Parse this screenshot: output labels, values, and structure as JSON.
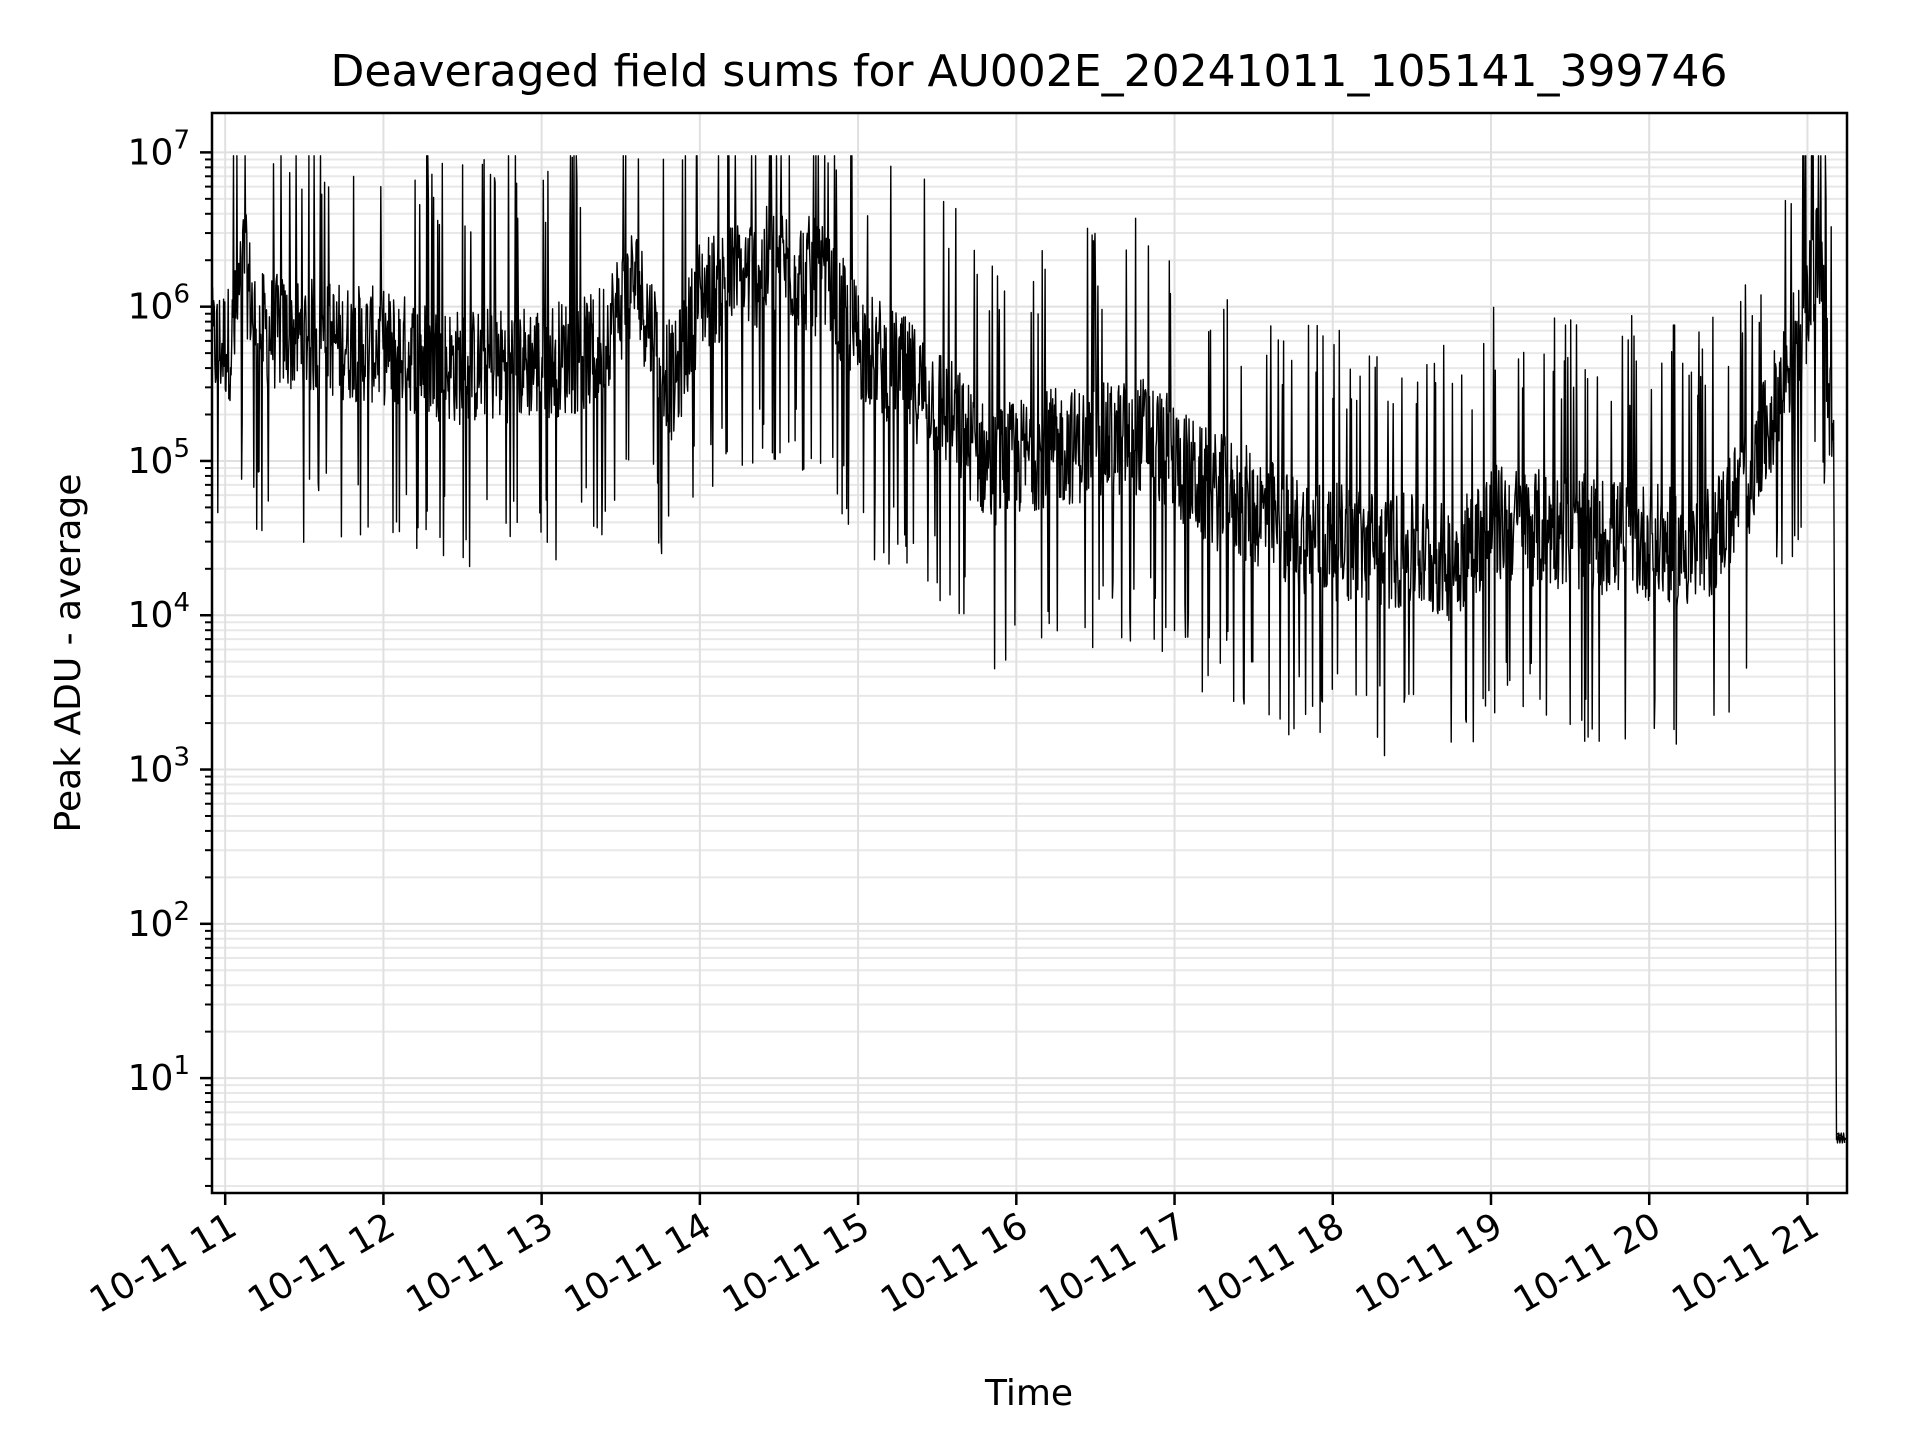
{
  "chart_data": {
    "type": "line",
    "title": "Deaveraged field sums for AU002E_20241011_105141_399746",
    "xlabel": "Time",
    "ylabel": "Peak ADU - average",
    "y_scale": "log",
    "ylim": [
      1.8,
      18000000
    ],
    "xlim": [
      "2024-10-11 10:55",
      "2024-10-11 21:15"
    ],
    "grid": "on (major and minor)",
    "legend": "none",
    "line_color": "#000000",
    "x_ticks": [
      {
        "t": "2024-10-11 11:00",
        "label": "10-11 11"
      },
      {
        "t": "2024-10-11 12:00",
        "label": "10-11 12"
      },
      {
        "t": "2024-10-11 13:00",
        "label": "10-11 13"
      },
      {
        "t": "2024-10-11 14:00",
        "label": "10-11 14"
      },
      {
        "t": "2024-10-11 15:00",
        "label": "10-11 15"
      },
      {
        "t": "2024-10-11 16:00",
        "label": "10-11 16"
      },
      {
        "t": "2024-10-11 17:00",
        "label": "10-11 17"
      },
      {
        "t": "2024-10-11 18:00",
        "label": "10-11 18"
      },
      {
        "t": "2024-10-11 19:00",
        "label": "10-11 19"
      },
      {
        "t": "2024-10-11 20:00",
        "label": "10-11 20"
      },
      {
        "t": "2024-10-11 21:00",
        "label": "10-11 21"
      }
    ],
    "y_ticks": [
      {
        "value": 10,
        "base": "10",
        "exp": "1"
      },
      {
        "value": 100,
        "base": "10",
        "exp": "2"
      },
      {
        "value": 1000,
        "base": "10",
        "exp": "3"
      },
      {
        "value": 10000,
        "base": "10",
        "exp": "4"
      },
      {
        "value": 100000,
        "base": "10",
        "exp": "5"
      },
      {
        "value": 1000000,
        "base": "10",
        "exp": "6"
      },
      {
        "value": 10000000,
        "base": "10",
        "exp": "7"
      }
    ],
    "series": [
      {
        "points": [
          [
            "2024-10-11 10:55",
            550000
          ],
          [
            "2024-10-11 11:03",
            600000
          ],
          [
            "2024-10-11 11:07",
            2000000
          ],
          [
            "2024-10-11 11:12",
            700000
          ],
          [
            "2024-10-11 11:30",
            650000
          ],
          [
            "2024-10-11 12:00",
            550000
          ],
          [
            "2024-10-11 12:30",
            400000
          ],
          [
            "2024-10-11 13:00",
            450000
          ],
          [
            "2024-10-11 13:20",
            500000
          ],
          [
            "2024-10-11 13:35",
            1500000
          ],
          [
            "2024-10-11 13:50",
            300000
          ],
          [
            "2024-10-11 14:00",
            1200000
          ],
          [
            "2024-10-11 14:30",
            2000000
          ],
          [
            "2024-10-11 14:45",
            1500000
          ],
          [
            "2024-10-11 15:00",
            600000
          ],
          [
            "2024-10-11 15:30",
            250000
          ],
          [
            "2024-10-11 15:50",
            90000
          ],
          [
            "2024-10-11 16:10",
            120000
          ],
          [
            "2024-10-11 16:30",
            130000
          ],
          [
            "2024-10-11 16:50",
            150000
          ],
          [
            "2024-10-11 17:10",
            70000
          ],
          [
            "2024-10-11 17:30",
            50000
          ],
          [
            "2024-10-11 17:45",
            35000
          ],
          [
            "2024-10-11 18:00",
            30000
          ],
          [
            "2024-10-11 18:30",
            25000
          ],
          [
            "2024-10-11 18:45",
            22000
          ],
          [
            "2024-10-11 19:00",
            40000
          ],
          [
            "2024-10-11 19:30",
            35000
          ],
          [
            "2024-10-11 20:00",
            30000
          ],
          [
            "2024-10-11 20:20",
            25000
          ],
          [
            "2024-10-11 20:40",
            90000
          ],
          [
            "2024-10-11 21:00",
            1000000
          ],
          [
            "2024-10-11 21:05",
            2500000
          ],
          [
            "2024-10-11 21:10",
            80000
          ],
          [
            "2024-10-11 21:11",
            4
          ],
          [
            "2024-10-11 21:15",
            4
          ]
        ],
        "spike_range": [
          0.35,
          0.85
        ]
      }
    ]
  }
}
